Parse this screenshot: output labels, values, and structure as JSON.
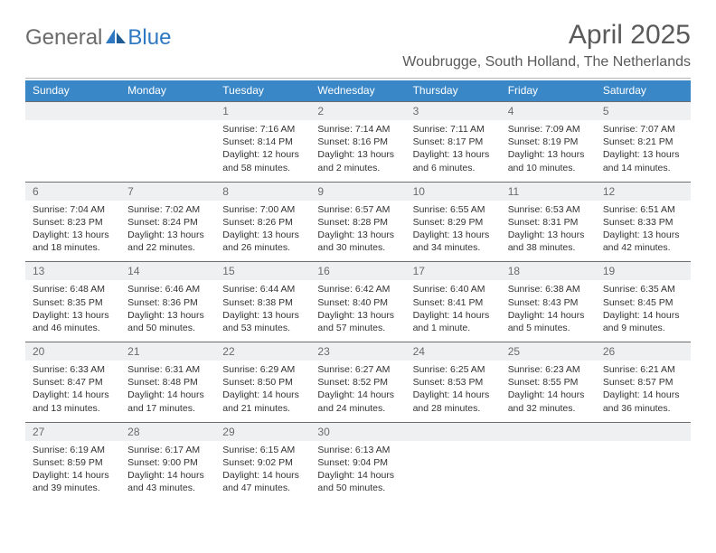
{
  "logo": {
    "general": "General",
    "blue": "Blue"
  },
  "title": "April 2025",
  "location": "Woubrugge, South Holland, The Netherlands",
  "colors": {
    "header_bg": "#3a87c7",
    "header_text": "#ffffff",
    "daynum_bg": "#eef0f1",
    "daynum_text": "#6b6b6b",
    "rule": "#6e6e6e",
    "body_text": "#333333",
    "title_text": "#5a5a5a",
    "logo_gray": "#6b6b6b",
    "logo_blue": "#2f78c2"
  },
  "weekdays": [
    "Sunday",
    "Monday",
    "Tuesday",
    "Wednesday",
    "Thursday",
    "Friday",
    "Saturday"
  ],
  "weeks": [
    [
      {
        "day": "",
        "lines": [
          "",
          "",
          "",
          ""
        ]
      },
      {
        "day": "",
        "lines": [
          "",
          "",
          "",
          ""
        ]
      },
      {
        "day": "1",
        "lines": [
          "Sunrise: 7:16 AM",
          "Sunset: 8:14 PM",
          "Daylight: 12 hours",
          "and 58 minutes."
        ]
      },
      {
        "day": "2",
        "lines": [
          "Sunrise: 7:14 AM",
          "Sunset: 8:16 PM",
          "Daylight: 13 hours",
          "and 2 minutes."
        ]
      },
      {
        "day": "3",
        "lines": [
          "Sunrise: 7:11 AM",
          "Sunset: 8:17 PM",
          "Daylight: 13 hours",
          "and 6 minutes."
        ]
      },
      {
        "day": "4",
        "lines": [
          "Sunrise: 7:09 AM",
          "Sunset: 8:19 PM",
          "Daylight: 13 hours",
          "and 10 minutes."
        ]
      },
      {
        "day": "5",
        "lines": [
          "Sunrise: 7:07 AM",
          "Sunset: 8:21 PM",
          "Daylight: 13 hours",
          "and 14 minutes."
        ]
      }
    ],
    [
      {
        "day": "6",
        "lines": [
          "Sunrise: 7:04 AM",
          "Sunset: 8:23 PM",
          "Daylight: 13 hours",
          "and 18 minutes."
        ]
      },
      {
        "day": "7",
        "lines": [
          "Sunrise: 7:02 AM",
          "Sunset: 8:24 PM",
          "Daylight: 13 hours",
          "and 22 minutes."
        ]
      },
      {
        "day": "8",
        "lines": [
          "Sunrise: 7:00 AM",
          "Sunset: 8:26 PM",
          "Daylight: 13 hours",
          "and 26 minutes."
        ]
      },
      {
        "day": "9",
        "lines": [
          "Sunrise: 6:57 AM",
          "Sunset: 8:28 PM",
          "Daylight: 13 hours",
          "and 30 minutes."
        ]
      },
      {
        "day": "10",
        "lines": [
          "Sunrise: 6:55 AM",
          "Sunset: 8:29 PM",
          "Daylight: 13 hours",
          "and 34 minutes."
        ]
      },
      {
        "day": "11",
        "lines": [
          "Sunrise: 6:53 AM",
          "Sunset: 8:31 PM",
          "Daylight: 13 hours",
          "and 38 minutes."
        ]
      },
      {
        "day": "12",
        "lines": [
          "Sunrise: 6:51 AM",
          "Sunset: 8:33 PM",
          "Daylight: 13 hours",
          "and 42 minutes."
        ]
      }
    ],
    [
      {
        "day": "13",
        "lines": [
          "Sunrise: 6:48 AM",
          "Sunset: 8:35 PM",
          "Daylight: 13 hours",
          "and 46 minutes."
        ]
      },
      {
        "day": "14",
        "lines": [
          "Sunrise: 6:46 AM",
          "Sunset: 8:36 PM",
          "Daylight: 13 hours",
          "and 50 minutes."
        ]
      },
      {
        "day": "15",
        "lines": [
          "Sunrise: 6:44 AM",
          "Sunset: 8:38 PM",
          "Daylight: 13 hours",
          "and 53 minutes."
        ]
      },
      {
        "day": "16",
        "lines": [
          "Sunrise: 6:42 AM",
          "Sunset: 8:40 PM",
          "Daylight: 13 hours",
          "and 57 minutes."
        ]
      },
      {
        "day": "17",
        "lines": [
          "Sunrise: 6:40 AM",
          "Sunset: 8:41 PM",
          "Daylight: 14 hours",
          "and 1 minute."
        ]
      },
      {
        "day": "18",
        "lines": [
          "Sunrise: 6:38 AM",
          "Sunset: 8:43 PM",
          "Daylight: 14 hours",
          "and 5 minutes."
        ]
      },
      {
        "day": "19",
        "lines": [
          "Sunrise: 6:35 AM",
          "Sunset: 8:45 PM",
          "Daylight: 14 hours",
          "and 9 minutes."
        ]
      }
    ],
    [
      {
        "day": "20",
        "lines": [
          "Sunrise: 6:33 AM",
          "Sunset: 8:47 PM",
          "Daylight: 14 hours",
          "and 13 minutes."
        ]
      },
      {
        "day": "21",
        "lines": [
          "Sunrise: 6:31 AM",
          "Sunset: 8:48 PM",
          "Daylight: 14 hours",
          "and 17 minutes."
        ]
      },
      {
        "day": "22",
        "lines": [
          "Sunrise: 6:29 AM",
          "Sunset: 8:50 PM",
          "Daylight: 14 hours",
          "and 21 minutes."
        ]
      },
      {
        "day": "23",
        "lines": [
          "Sunrise: 6:27 AM",
          "Sunset: 8:52 PM",
          "Daylight: 14 hours",
          "and 24 minutes."
        ]
      },
      {
        "day": "24",
        "lines": [
          "Sunrise: 6:25 AM",
          "Sunset: 8:53 PM",
          "Daylight: 14 hours",
          "and 28 minutes."
        ]
      },
      {
        "day": "25",
        "lines": [
          "Sunrise: 6:23 AM",
          "Sunset: 8:55 PM",
          "Daylight: 14 hours",
          "and 32 minutes."
        ]
      },
      {
        "day": "26",
        "lines": [
          "Sunrise: 6:21 AM",
          "Sunset: 8:57 PM",
          "Daylight: 14 hours",
          "and 36 minutes."
        ]
      }
    ],
    [
      {
        "day": "27",
        "lines": [
          "Sunrise: 6:19 AM",
          "Sunset: 8:59 PM",
          "Daylight: 14 hours",
          "and 39 minutes."
        ]
      },
      {
        "day": "28",
        "lines": [
          "Sunrise: 6:17 AM",
          "Sunset: 9:00 PM",
          "Daylight: 14 hours",
          "and 43 minutes."
        ]
      },
      {
        "day": "29",
        "lines": [
          "Sunrise: 6:15 AM",
          "Sunset: 9:02 PM",
          "Daylight: 14 hours",
          "and 47 minutes."
        ]
      },
      {
        "day": "30",
        "lines": [
          "Sunrise: 6:13 AM",
          "Sunset: 9:04 PM",
          "Daylight: 14 hours",
          "and 50 minutes."
        ]
      },
      {
        "day": "",
        "lines": [
          "",
          "",
          "",
          ""
        ]
      },
      {
        "day": "",
        "lines": [
          "",
          "",
          "",
          ""
        ]
      },
      {
        "day": "",
        "lines": [
          "",
          "",
          "",
          ""
        ]
      }
    ]
  ]
}
